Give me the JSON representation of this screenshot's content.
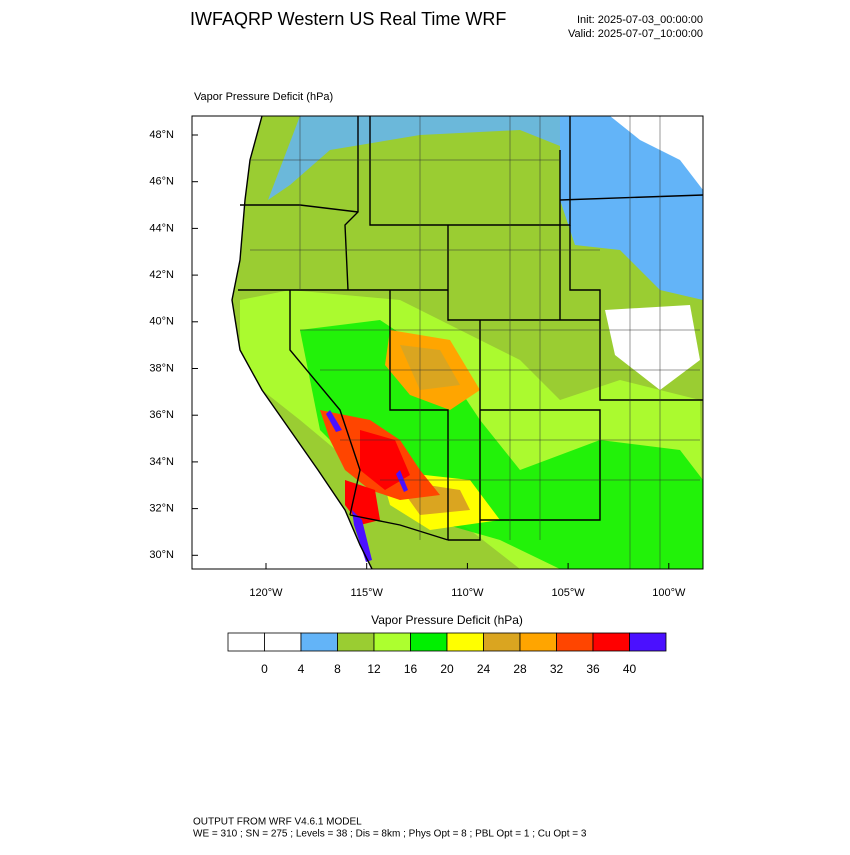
{
  "header": {
    "title": "IWFAQRP Western US Real Time WRF",
    "init": "Init: 2025-07-03_00:00:00",
    "valid": "Valid: 2025-07-07_10:00:00"
  },
  "map": {
    "title": "Vapor Pressure Deficit   (hPa)",
    "lat_labels": [
      "48°N",
      "46°N",
      "44°N",
      "42°N",
      "40°N",
      "38°N",
      "36°N",
      "34°N",
      "32°N",
      "30°N"
    ],
    "lon_labels": [
      "120°W",
      "115°W",
      "110°W",
      "105°W",
      "100°W"
    ]
  },
  "colorbar": {
    "title": "Vapor Pressure Deficit  (hPa)",
    "colors": [
      "#ffffff",
      "#ffffff",
      "#63b4f8",
      "#9acd32",
      "#adff2f",
      "#00f000",
      "#ffff00",
      "#daa520",
      "#ffa500",
      "#ff4500",
      "#ff0000",
      "#4b10ff"
    ],
    "labels": [
      "0",
      "4",
      "8",
      "12",
      "16",
      "20",
      "24",
      "28",
      "32",
      "36",
      "40"
    ]
  },
  "footer": {
    "line1": "OUTPUT FROM WRF V4.6.1 MODEL",
    "line2": "WE = 310 ; SN = 275 ; Levels = 38 ; Dis = 8km ; Phys Opt = 8 ; PBL Opt = 1 ; Cu Opt = 3"
  }
}
